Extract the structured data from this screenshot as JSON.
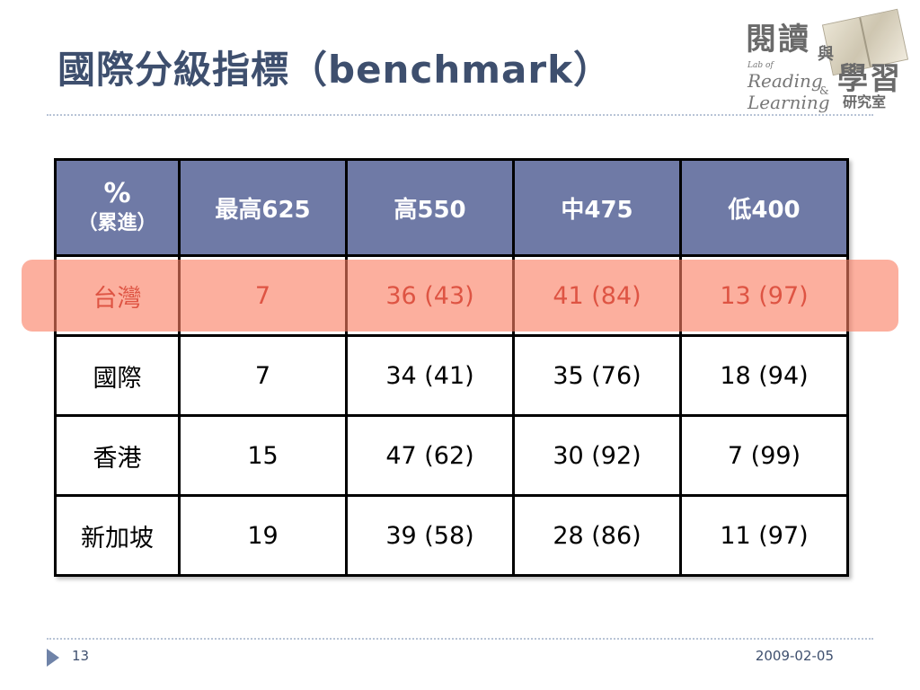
{
  "slide": {
    "title": "國際分級指標（benchmark）",
    "page_number": "13",
    "date": "2009-02-05"
  },
  "logo": {
    "line1": "閱讀",
    "connector": "與",
    "line2": "學習",
    "line3": "研究室",
    "lab_of": "Lab of",
    "reading": "Reading",
    "amp": "&",
    "learning": "Learning"
  },
  "table": {
    "header": {
      "corner_top": "%",
      "corner_bottom": "（累進）",
      "cols": [
        "最高625",
        "高550",
        "中475",
        "低400"
      ]
    },
    "rows": [
      {
        "name": "台灣",
        "values": [
          "7",
          "36 (43)",
          "41 (84)",
          "13 (97)"
        ],
        "highlighted": true
      },
      {
        "name": "國際",
        "values": [
          "7",
          "34 (41)",
          "35 (76)",
          "18 (94)"
        ]
      },
      {
        "name": "香港",
        "values": [
          "15",
          "47 (62)",
          "30 (92)",
          "7 (99)"
        ]
      },
      {
        "name": "新加坡",
        "values": [
          "19",
          "39 (58)",
          "28 (86)",
          "11 (97)"
        ]
      }
    ]
  },
  "colors": {
    "title": "#3e4f6e",
    "header_bg": "#6f7aa6",
    "highlight_band": "#fa7e62",
    "highlight_text": "#b01010"
  }
}
